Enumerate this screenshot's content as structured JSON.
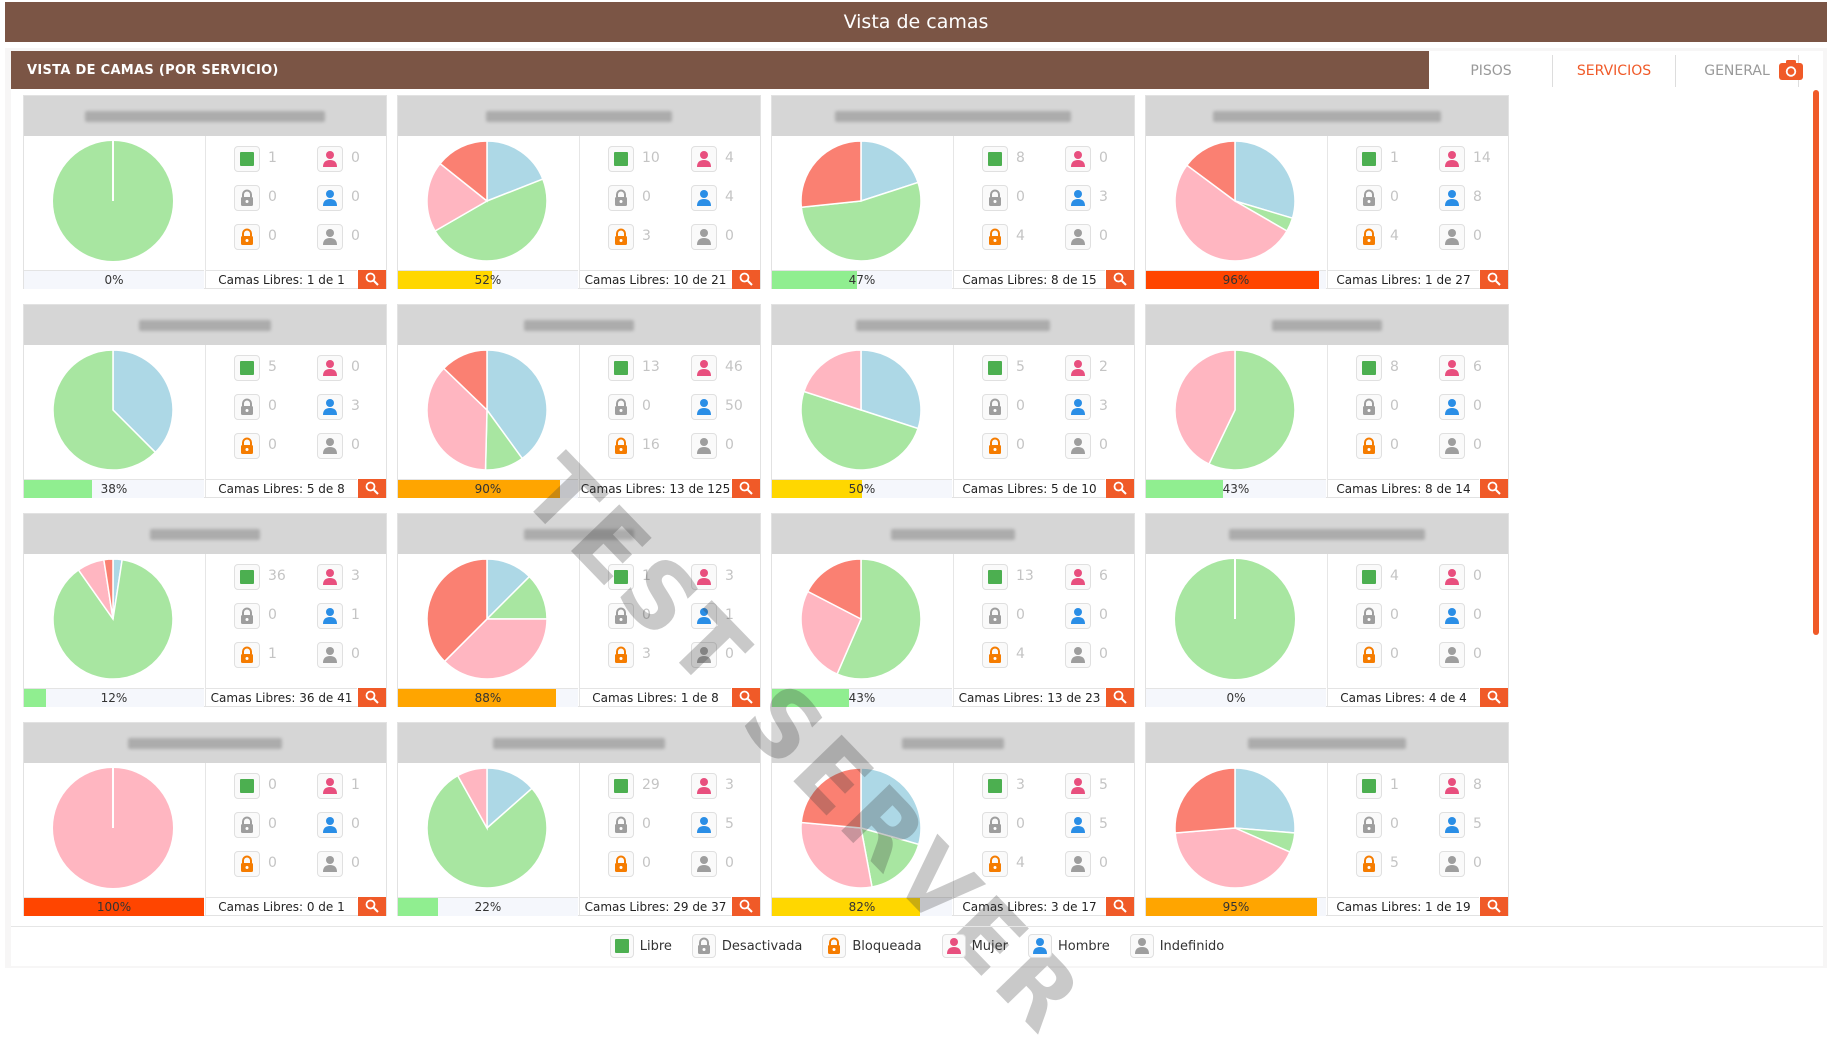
{
  "window_title": "Vista de camas",
  "section_title": "VISTA DE CAMAS (POR SERVICIO)",
  "tabs": [
    {
      "label": "PISOS",
      "active": false
    },
    {
      "label": "SERVICIOS",
      "active": true
    },
    {
      "label": "GENERAL",
      "active": false
    }
  ],
  "watermark": "TEST SERVER",
  "colors": {
    "libre": "#4caf50",
    "desactivada": "#9e9e9e",
    "bloqueada": "#f57c00",
    "mujer": "#e84f7e",
    "hombre": "#2a8ee6",
    "indefinido": "#9e9e9e",
    "accent": "#f05a28",
    "brown": "#7b5545"
  },
  "legend": [
    {
      "label": "Libre",
      "icon": "libre-icon"
    },
    {
      "label": "Desactivada",
      "icon": "lock-gray-icon"
    },
    {
      "label": "Bloqueada",
      "icon": "lock-orange-icon"
    },
    {
      "label": "Mujer",
      "icon": "female-icon"
    },
    {
      "label": "Hombre",
      "icon": "male-icon"
    },
    {
      "label": "Indefinido",
      "icon": "undefined-person-icon"
    }
  ],
  "cards": [
    {
      "pie": [
        0,
        1,
        0,
        0,
        0
      ],
      "counts": {
        "libre": "1",
        "desactivada": "0",
        "bloqueada": "0",
        "mujer": "0",
        "hombre": "0",
        "indefinido": "0"
      },
      "occupancy": 0,
      "occupancy_label": "0%",
      "bar_color": "#90ee90",
      "libres": "Camas Libres: 1 de 1"
    },
    {
      "pie": [
        4,
        10,
        4,
        3,
        0
      ],
      "counts": {
        "libre": "10",
        "desactivada": "0",
        "bloqueada": "3",
        "mujer": "4",
        "hombre": "4",
        "indefinido": "0"
      },
      "occupancy": 52,
      "occupancy_label": "52%",
      "bar_color": "#ffd700",
      "libres": "Camas Libres: 10 de 21"
    },
    {
      "pie": [
        3,
        8,
        0,
        4,
        0
      ],
      "counts": {
        "libre": "8",
        "desactivada": "0",
        "bloqueada": "4",
        "mujer": "0",
        "hombre": "3",
        "indefinido": "0"
      },
      "occupancy": 47,
      "occupancy_label": "47%",
      "bar_color": "#90ee90",
      "libres": "Camas Libres: 8 de 15"
    },
    {
      "pie": [
        8,
        1,
        14,
        4,
        0
      ],
      "counts": {
        "libre": "1",
        "desactivada": "0",
        "bloqueada": "4",
        "mujer": "14",
        "hombre": "8",
        "indefinido": "0"
      },
      "occupancy": 96,
      "occupancy_label": "96%",
      "bar_color": "#ff4500",
      "libres": "Camas Libres: 1 de 27"
    },
    {
      "pie": [
        3,
        5,
        0,
        0,
        0
      ],
      "counts": {
        "libre": "5",
        "desactivada": "0",
        "bloqueada": "0",
        "mujer": "0",
        "hombre": "3",
        "indefinido": "0"
      },
      "occupancy": 38,
      "occupancy_label": "38%",
      "bar_color": "#90ee90",
      "libres": "Camas Libres: 5 de 8"
    },
    {
      "pie": [
        50,
        13,
        46,
        16,
        0
      ],
      "counts": {
        "libre": "13",
        "desactivada": "0",
        "bloqueada": "16",
        "mujer": "46",
        "hombre": "50",
        "indefinido": "0"
      },
      "occupancy": 90,
      "occupancy_label": "90%",
      "bar_color": "#ffa500",
      "libres": "Camas Libres: 13 de 125"
    },
    {
      "pie": [
        3,
        5,
        2,
        0,
        0
      ],
      "counts": {
        "libre": "5",
        "desactivada": "0",
        "bloqueada": "0",
        "mujer": "2",
        "hombre": "3",
        "indefinido": "0"
      },
      "occupancy": 50,
      "occupancy_label": "50%",
      "bar_color": "#ffd700",
      "libres": "Camas Libres: 5 de 10"
    },
    {
      "pie": [
        0,
        8,
        6,
        0,
        0
      ],
      "counts": {
        "libre": "8",
        "desactivada": "0",
        "bloqueada": "0",
        "mujer": "6",
        "hombre": "0",
        "indefinido": "0"
      },
      "occupancy": 43,
      "occupancy_label": "43%",
      "bar_color": "#90ee90",
      "libres": "Camas Libres: 8 de 14"
    },
    {
      "pie": [
        1,
        36,
        3,
        1,
        0
      ],
      "counts": {
        "libre": "36",
        "desactivada": "0",
        "bloqueada": "1",
        "mujer": "3",
        "hombre": "1",
        "indefinido": "0"
      },
      "occupancy": 12,
      "occupancy_label": "12%",
      "bar_color": "#90ee90",
      "libres": "Camas Libres: 36 de 41"
    },
    {
      "pie": [
        1,
        1,
        3,
        3,
        0
      ],
      "counts": {
        "libre": "1",
        "desactivada": "0",
        "bloqueada": "3",
        "mujer": "3",
        "hombre": "1",
        "indefinido": "0"
      },
      "occupancy": 88,
      "occupancy_label": "88%",
      "bar_color": "#ffa500",
      "libres": "Camas Libres: 1 de 8"
    },
    {
      "pie": [
        0,
        13,
        6,
        4,
        0
      ],
      "counts": {
        "libre": "13",
        "desactivada": "0",
        "bloqueada": "4",
        "mujer": "6",
        "hombre": "0",
        "indefinido": "0"
      },
      "occupancy": 43,
      "occupancy_label": "43%",
      "bar_color": "#90ee90",
      "libres": "Camas Libres: 13 de 23"
    },
    {
      "pie": [
        0,
        4,
        0,
        0,
        0
      ],
      "counts": {
        "libre": "4",
        "desactivada": "0",
        "bloqueada": "0",
        "mujer": "0",
        "hombre": "0",
        "indefinido": "0"
      },
      "occupancy": 0,
      "occupancy_label": "0%",
      "bar_color": "#90ee90",
      "libres": "Camas Libres: 4 de 4"
    },
    {
      "pie": [
        0,
        0,
        1,
        0,
        0
      ],
      "counts": {
        "libre": "0",
        "desactivada": "0",
        "bloqueada": "0",
        "mujer": "1",
        "hombre": "0",
        "indefinido": "0"
      },
      "occupancy": 100,
      "occupancy_label": "100%",
      "bar_color": "#ff4500",
      "libres": "Camas Libres: 0 de 1"
    },
    {
      "pie": [
        5,
        29,
        3,
        0,
        0
      ],
      "counts": {
        "libre": "29",
        "desactivada": "0",
        "bloqueada": "0",
        "mujer": "3",
        "hombre": "5",
        "indefinido": "0"
      },
      "occupancy": 22,
      "occupancy_label": "22%",
      "bar_color": "#90ee90",
      "libres": "Camas Libres: 29 de 37"
    },
    {
      "pie": [
        5,
        3,
        5,
        4,
        0
      ],
      "counts": {
        "libre": "3",
        "desactivada": "0",
        "bloqueada": "4",
        "mujer": "5",
        "hombre": "5",
        "indefinido": "0"
      },
      "occupancy": 82,
      "occupancy_label": "82%",
      "bar_color": "#ffd700",
      "libres": "Camas Libres: 3 de 17"
    },
    {
      "pie": [
        5,
        1,
        8,
        5,
        0
      ],
      "counts": {
        "libre": "1",
        "desactivada": "0",
        "bloqueada": "5",
        "mujer": "8",
        "hombre": "5",
        "indefinido": "0"
      },
      "occupancy": 95,
      "occupancy_label": "95%",
      "bar_color": "#ffa500",
      "libres": "Camas Libres: 1 de 19"
    }
  ]
}
